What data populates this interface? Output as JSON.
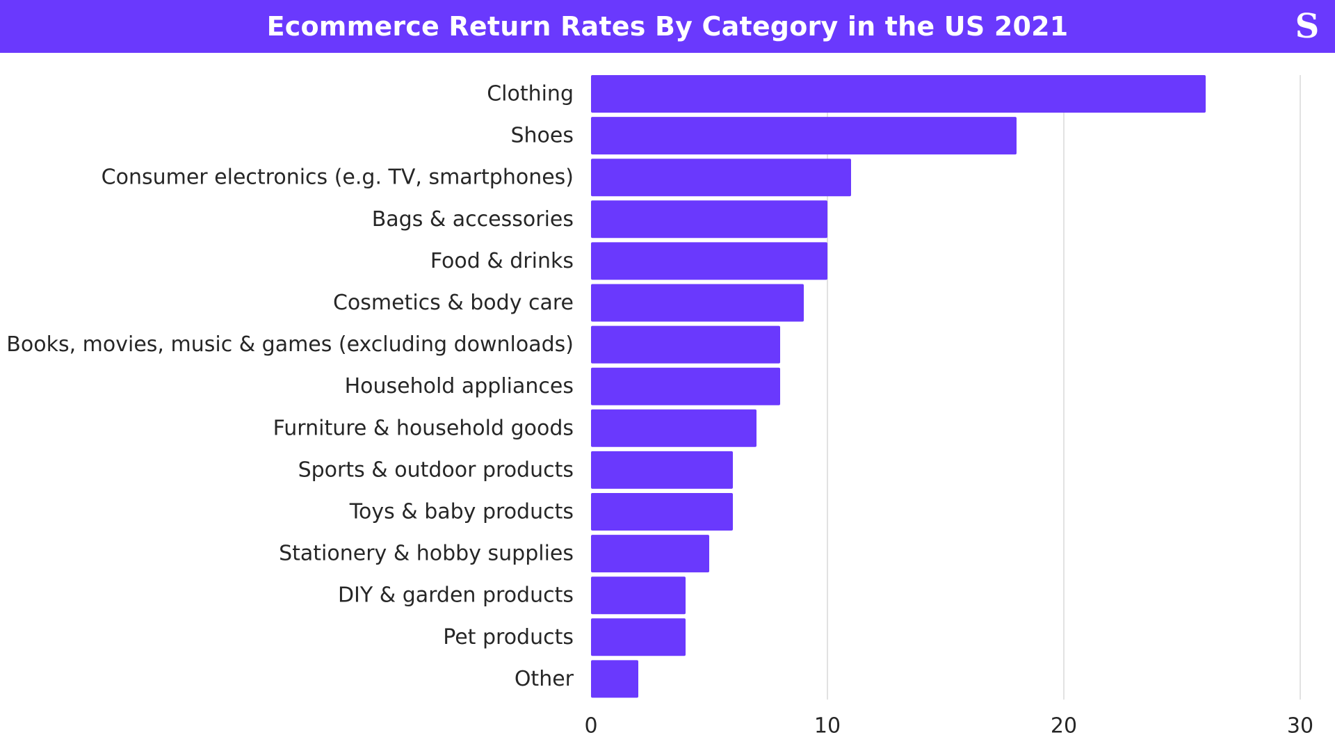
{
  "colors": {
    "accent": "#6a39fd",
    "bar": "#6a39fd",
    "grid": "#d9d9d9",
    "label": "#262626",
    "title_text": "#ffffff"
  },
  "header": {
    "title": "Ecommerce Return Rates By Category in the US 2021",
    "logo": "S"
  },
  "chart_data": {
    "type": "bar",
    "orientation": "horizontal",
    "title": "Ecommerce Return Rates By Category in the US 2021",
    "xlabel": "",
    "ylabel": "",
    "xlim": [
      0,
      30
    ],
    "x_ticks": [
      0,
      10,
      20,
      30
    ],
    "grid": true,
    "legend": "none",
    "categories": [
      "Clothing",
      "Shoes",
      "Consumer electronics (e.g. TV, smartphones)",
      "Bags & accessories",
      "Food & drinks",
      "Cosmetics & body care",
      "Books, movies, music & games (excluding downloads)",
      "Household appliances",
      "Furniture & household goods",
      "Sports & outdoor products",
      "Toys & baby products",
      "Stationery & hobby supplies",
      "DIY & garden products",
      "Pet products",
      "Other"
    ],
    "values": [
      26,
      18,
      11,
      10,
      10,
      9,
      8,
      8,
      7,
      6,
      6,
      5,
      4,
      4,
      2
    ]
  }
}
